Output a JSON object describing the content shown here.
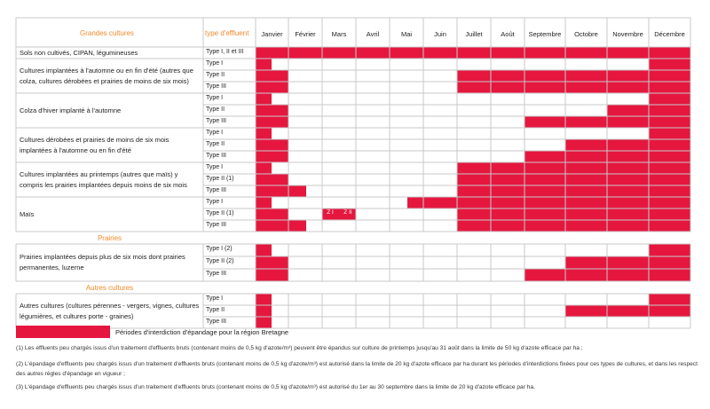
{
  "header": {
    "category_title": "Grandes cultures",
    "type_title": "type d'effluent",
    "months": [
      "Janvier",
      "Février",
      "Mars",
      "Avril",
      "Mai",
      "Juin",
      "Juillet",
      "Août",
      "Septembre",
      "Octobre",
      "Novembre",
      "Décembre"
    ]
  },
  "colors": {
    "red": "#e5173f",
    "orange": "#f08a2c",
    "grid": "#c8c8c8"
  },
  "sections": [
    {
      "label": "",
      "rows": [
        {
          "category": "Sols non cultivés, CIPAN, légumineuses",
          "types": [
            "Type I, II et III"
          ],
          "fill": [
            [
              1,
              12
            ]
          ]
        }
      ]
    },
    {
      "label": "",
      "rows": [
        {
          "category": "Cultures implantées à l'automne ou en fin d'été (autres que colza, cultures dérobées et prairies de moins de six mois)",
          "types": [
            "Type I",
            "Type II",
            "Type III"
          ]
        },
        {
          "category": "Colza d'hiver implanté à l'automne",
          "types": [
            "Type I",
            "Type II",
            "Type III"
          ]
        },
        {
          "category": "Cultures dérobées et prairies de moins de six mois implantées à l'automne ou en fin d'été",
          "types": [
            "Type I",
            "Type II",
            "Type III"
          ]
        },
        {
          "category": "Cultures implantées au printemps (autres que maïs) y compris les prairies implantées depuis moins de six mois",
          "types": [
            "Type I",
            "Type II (1)",
            "Type III"
          ]
        },
        {
          "category": "Maïs",
          "types": [
            "Type I",
            "Type II (1)",
            "Type III"
          ]
        }
      ]
    },
    {
      "label": "Prairies",
      "rows": [
        {
          "category": "Prairies implantées depuis plus de six mois dont prairies permanentes, luzerne",
          "types": [
            "Type I (2)",
            "Type II (2)",
            "Type III"
          ]
        }
      ]
    },
    {
      "label": "Autres cultures",
      "rows": [
        {
          "category": "Autres cultures (cultures pérennes - vergers, vignes, cultures légumières, et cultures porte - graines)",
          "types": [
            "Type I",
            "Type II",
            "Type III"
          ]
        }
      ]
    }
  ],
  "notes": {
    "zi": "Z I",
    "zii": "Z II",
    "three": "(3)"
  },
  "legend": "Périodes d'interdiction d'épandage pour la région Bretagne",
  "footnotes": [
    "(1) Les effluents peu chargés issus d'un traitement d'effluents bruts (contenant moins de 0,5 kg d'azote/m³) peuvent être épandus sur culture de printemps jusqu'au 31 août dans la limite de 50 kg d'azote efficace par ha ;",
    "(2) L'épandage d'effluents peu chargés issus d'un traitement d'effluents bruts (contenant moins de 0,5 kg d'azote/m³) est autorisé dans la limite de 20 kg d'azote efficace par ha durant les périodes d'interdictions fixées pour ces types de cultures, et dans les respect des autres règles d'épandage en vigueur ;",
    "(3) L'épandage d'effluents peu chargés issus d'un traitement d'effluents bruts (contenant moins de 0,5 kg d'azote/m³) est autorisé du 1er au 30 septembre dans la limite de 20 kg d'azote efficace par ha."
  ]
}
